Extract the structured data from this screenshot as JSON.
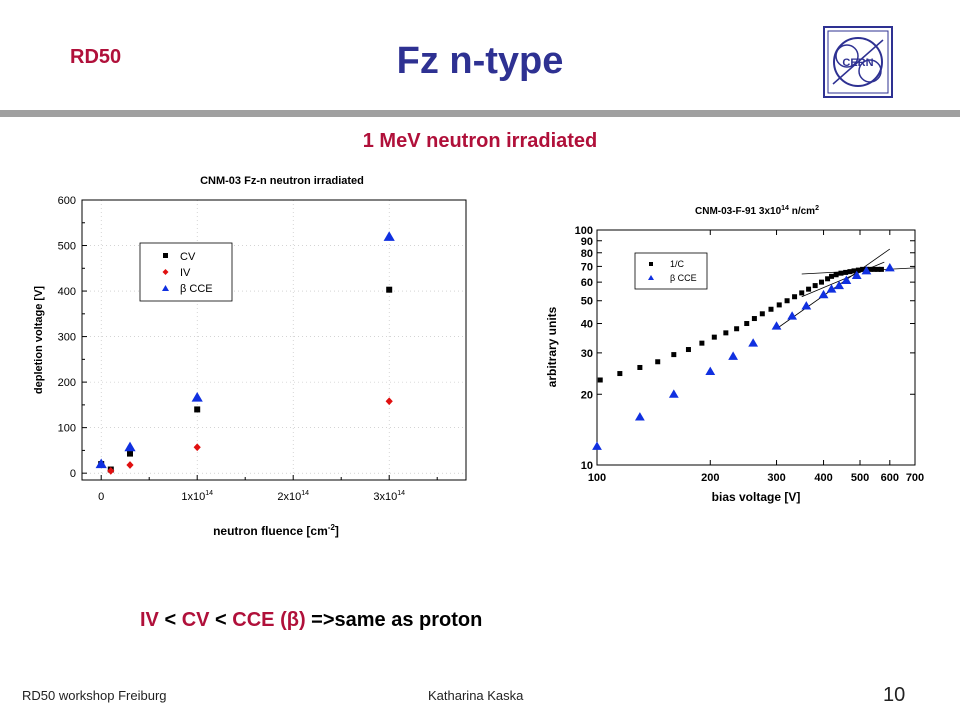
{
  "header": {
    "left_label": "RD50",
    "title": "Fz n-type",
    "logo_text": "CERN"
  },
  "subtitle": "1 MeV neutron irradiated",
  "conclusion": {
    "p1": "IV ",
    "p2": "< ",
    "p3": "CV ",
    "p4": "< ",
    "p5": "CCE (β) ",
    "p6": "=>same as proton"
  },
  "footer": {
    "left": "RD50 workshop Freiburg",
    "center": "Katharina Kaska",
    "page": "10"
  },
  "colors": {
    "title": "#2e3192",
    "accent": "#b0103a",
    "cv": "#000000",
    "iv": "#e01010",
    "cce": "#1030e0"
  },
  "chart_data": [
    {
      "type": "scatter",
      "title": "CNM-03 Fz-n neutron irradiated",
      "xlabel": "neutron fluence [cm",
      "xlabel_sup": "-2",
      "xlabel_end": "]",
      "ylabel": "depletion voltage [V]",
      "xlim": [
        -20000000000000.0,
        380000000000000.0
      ],
      "ylim": [
        -15,
        600
      ],
      "yticks": [
        "0",
        "100",
        "200",
        "300",
        "400",
        "500",
        "600"
      ],
      "xticks": [
        {
          "value": 0,
          "mant": "0",
          "exp": ""
        },
        {
          "value": 100000000000000.0,
          "mant": "1x10",
          "exp": "14"
        },
        {
          "value": 200000000000000.0,
          "mant": "2x10",
          "exp": "14"
        },
        {
          "value": 300000000000000.0,
          "mant": "3x10",
          "exp": "14"
        }
      ],
      "grid": true,
      "legend_position": "top-left",
      "series": [
        {
          "name": "CV",
          "marker": "square",
          "color": "#000000",
          "x": [
            0,
            10000000000000.0,
            30000000000000.0,
            100000000000000.0,
            300000000000000.0
          ],
          "y": [
            20,
            8,
            43,
            140,
            403
          ]
        },
        {
          "name": "IV",
          "marker": "diamond",
          "color": "#e01010",
          "x": [
            10000000000000.0,
            30000000000000.0,
            100000000000000.0,
            300000000000000.0
          ],
          "y": [
            5,
            18,
            57,
            158
          ]
        },
        {
          "name": "β CCE",
          "marker": "triangle",
          "color": "#1030e0",
          "x": [
            0,
            30000000000000.0,
            100000000000000.0,
            300000000000000.0
          ],
          "y": [
            20,
            57,
            166,
            519
          ]
        }
      ]
    },
    {
      "type": "scatter",
      "title": "CNM-03-F-91 3x10",
      "title_sup": "14",
      "title_end": " n/cm",
      "title_sup2": "2",
      "xlabel": "bias voltage [V]",
      "ylabel": "arbitrary units",
      "xscale": "log",
      "yscale": "log",
      "xlim": [
        100,
        700
      ],
      "ylim": [
        10,
        100
      ],
      "xticks": [
        {
          "value": 100,
          "label": "100"
        },
        {
          "value": 200,
          "label": "200"
        },
        {
          "value": 300,
          "label": "300"
        },
        {
          "value": 400,
          "label": "400"
        },
        {
          "value": 500,
          "label": "500"
        },
        {
          "value": 600,
          "label": "600"
        },
        {
          "value": 700,
          "label": "700"
        }
      ],
      "yticks": [
        {
          "value": 10,
          "label": "10"
        },
        {
          "value": 20,
          "label": "20"
        },
        {
          "value": 30,
          "label": "30"
        },
        {
          "value": 40,
          "label": "40"
        },
        {
          "value": 50,
          "label": "50"
        },
        {
          "value": 60,
          "label": "60"
        },
        {
          "value": 70,
          "label": "70"
        },
        {
          "value": 80,
          "label": "80"
        },
        {
          "value": 90,
          "label": "90"
        },
        {
          "value": 100,
          "label": "100"
        }
      ],
      "grid": false,
      "legend_position": "top-left",
      "series": [
        {
          "name": "1/C",
          "marker": "square",
          "color": "#000000",
          "x": [
            102,
            115,
            130,
            145,
            160,
            175,
            190,
            205,
            220,
            235,
            250,
            262,
            275,
            290,
            305,
            320,
            335,
            350,
            365,
            380,
            395,
            410,
            420,
            432,
            445,
            458,
            470,
            482,
            495,
            508,
            520,
            532,
            545,
            558,
            570
          ],
          "y": [
            23,
            24.5,
            26,
            27.5,
            29.5,
            31,
            33,
            35,
            36.5,
            38,
            40,
            42,
            44,
            46,
            48,
            50,
            52,
            54,
            56,
            58,
            60,
            62,
            63.5,
            64.5,
            65.5,
            66,
            66.5,
            67,
            67.5,
            68,
            68,
            68,
            68,
            68,
            68
          ]
        },
        {
          "name": "β CCE",
          "marker": "triangle",
          "color": "#1030e0",
          "x": [
            100,
            130,
            160,
            200,
            230,
            260,
            300,
            330,
            360,
            400,
            420,
            440,
            460,
            490,
            520,
            600
          ],
          "y": [
            12,
            16,
            20,
            25,
            29,
            33,
            39,
            43,
            47.5,
            53,
            56,
            58,
            61,
            64,
            67,
            69
          ]
        }
      ],
      "fit_lines": [
        {
          "x": [
            300,
            600
          ],
          "y": [
            38,
            83
          ]
        },
        {
          "x": [
            350,
            580
          ],
          "y": [
            52,
            73
          ]
        },
        {
          "x": [
            350,
            700
          ],
          "y": [
            65,
            69
          ]
        }
      ]
    }
  ]
}
